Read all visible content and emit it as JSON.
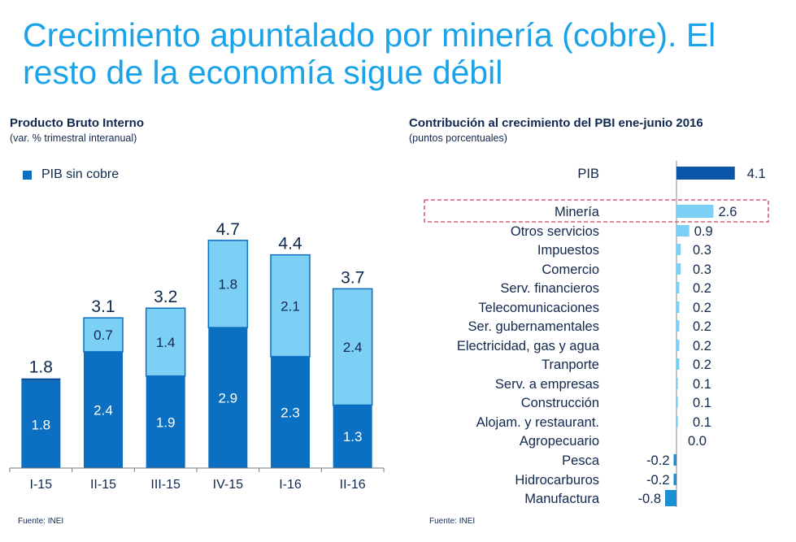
{
  "title": "Crecimiento apuntalado por minería (cobre). El resto de la economía sigue débil",
  "left_chart": {
    "title": "Producto Bruto Interno",
    "subtitle": "(var. % trimestral interanual)",
    "source": "Fuente: INEI"
  },
  "right_chart": {
    "title": "Contribución al crecimiento del PBI ene-junio 2016",
    "subtitle": "(puntos porcentuales)",
    "source": "Fuente: INEI"
  },
  "colors": {
    "title": "#1aa3e8",
    "dark_blue": "#0b6fc2",
    "light_blue": "#7dd0f5",
    "pib_bar": "#0b56a8",
    "highlight_border": "#c0445a"
  },
  "chart_data": [
    {
      "type": "bar",
      "stacked": true,
      "categories": [
        "I-15",
        "II-15",
        "III-15",
        "IV-15",
        "I-16",
        "II-16"
      ],
      "series": [
        {
          "name": "PIB sin cobre",
          "values": [
            1.8,
            2.4,
            1.9,
            2.9,
            2.3,
            1.3
          ],
          "segment_labels": [
            "1.8",
            "2.4",
            "1.9",
            "2.9",
            "2.3",
            "1.3"
          ]
        },
        {
          "values": [
            0.0,
            0.7,
            1.4,
            1.8,
            2.1,
            2.4
          ],
          "segment_labels": [
            "",
            "0.7",
            "1.4",
            "1.8",
            "2.1",
            "2.4"
          ]
        }
      ],
      "totals": [
        1.8,
        3.1,
        3.2,
        4.7,
        4.4,
        3.7
      ],
      "total_labels": [
        "1.8",
        "3.1",
        "3.2",
        "4.7",
        "4.4",
        "3.7"
      ],
      "ylim": [
        0,
        5.3
      ],
      "legend": "top-left"
    },
    {
      "type": "bar",
      "orientation": "horizontal",
      "categories": [
        "PIB",
        "Minería",
        "Otros servicios",
        "Impuestos",
        "Comercio",
        "Serv. financieros",
        "Telecomunicaciones",
        "Ser. gubernamentales",
        "Electricidad, gas y agua",
        "Tranporte",
        "Serv. a empresas",
        "Construcción",
        "Alojam. y restaurant.",
        "Agropecuario",
        "Pesca",
        "Hidrocarburos",
        "Manufactura"
      ],
      "values": [
        4.1,
        2.6,
        0.9,
        0.3,
        0.3,
        0.2,
        0.2,
        0.2,
        0.2,
        0.2,
        0.1,
        0.1,
        0.1,
        0.0,
        -0.2,
        -0.2,
        -0.8
      ],
      "labels": [
        "4.1",
        "2.6",
        "0.9",
        "0.3",
        "0.3",
        "0.2",
        "0.2",
        "0.2",
        "0.2",
        "0.2",
        "0.1",
        "0.1",
        "0.1",
        "0.0",
        "-0.2",
        "-0.2",
        "-0.8"
      ],
      "highlight": "Minería"
    }
  ]
}
